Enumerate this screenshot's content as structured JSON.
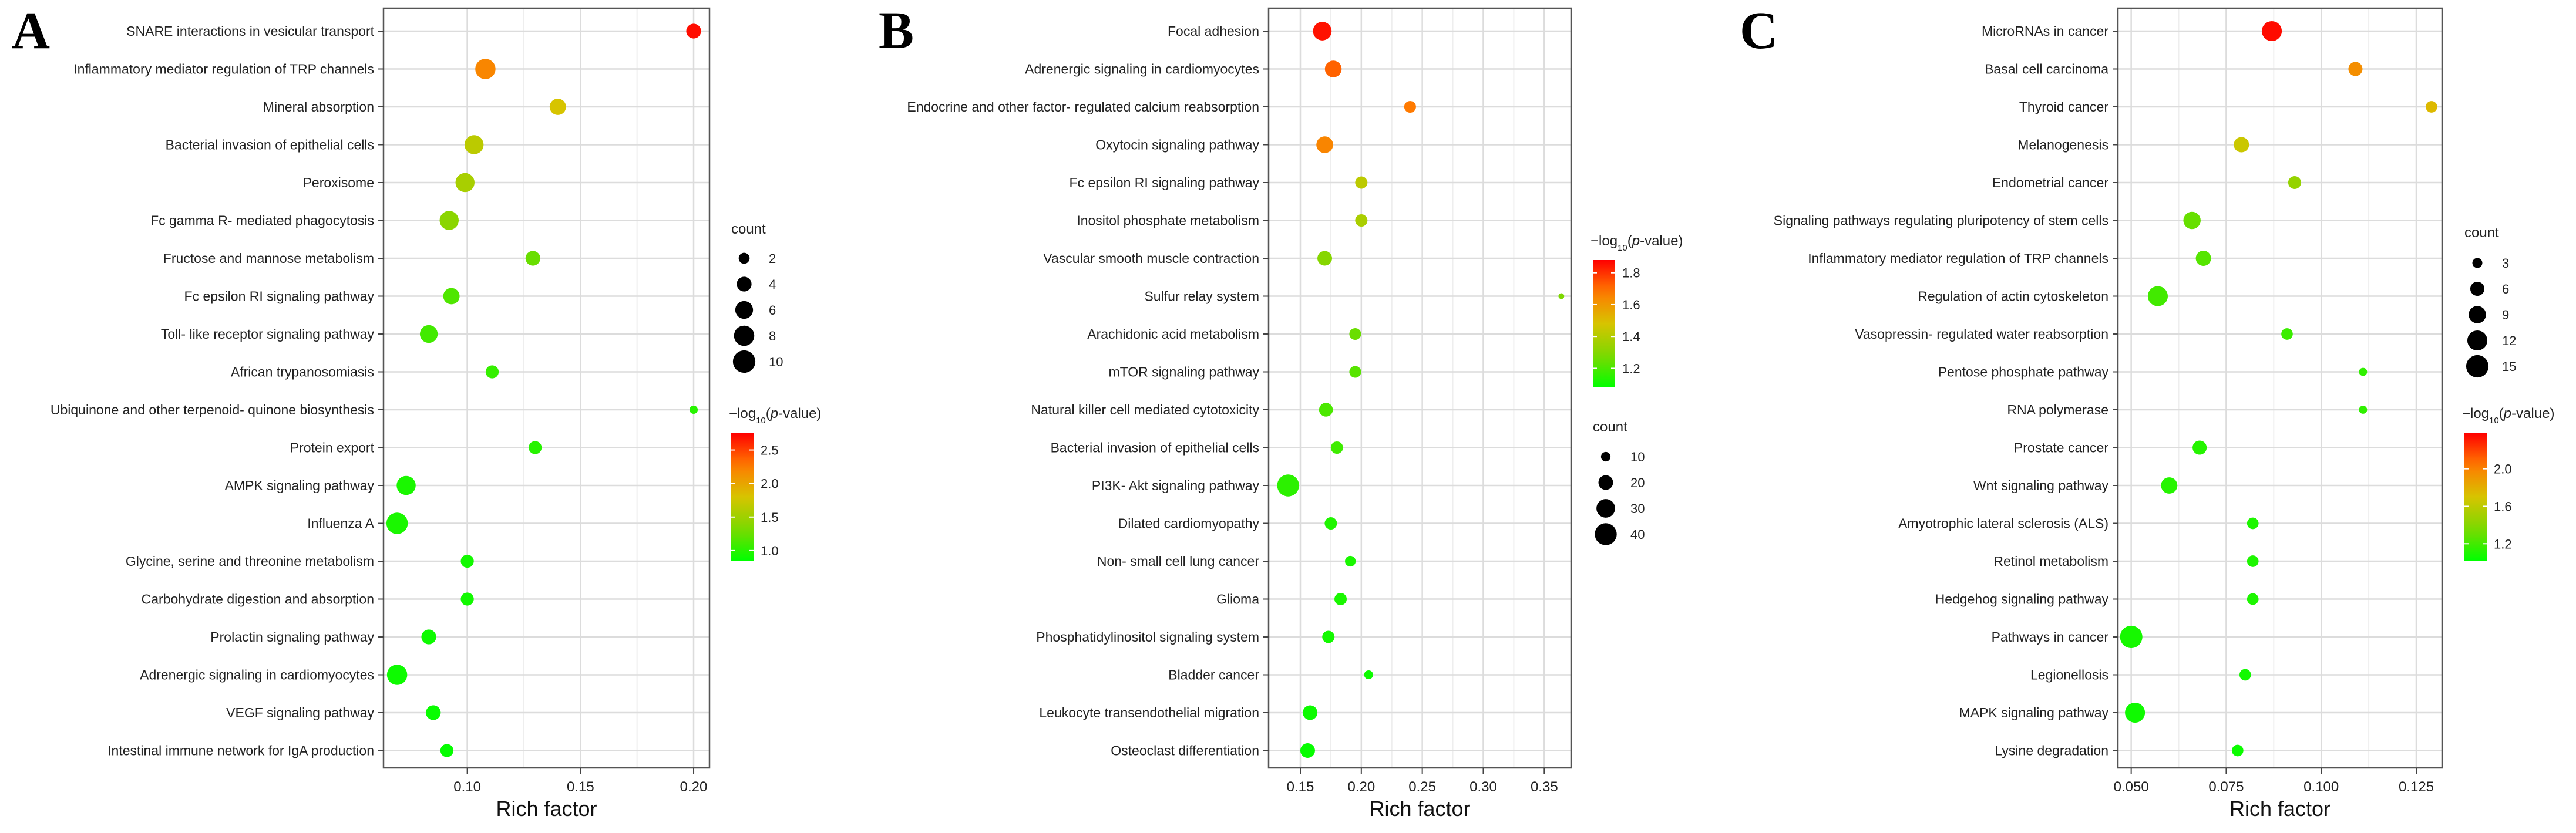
{
  "panel_labels": [
    "A",
    "B",
    "C"
  ],
  "legend_titles": {
    "count": "count",
    "pval_prefix": "−log",
    "pval_sub": "10",
    "pval_open": "(",
    "pval_p": "p",
    "pval_close": "-value)"
  },
  "colors": {
    "low": "#00ff00",
    "mid1": "#7dd800",
    "mid2": "#d7c400",
    "mid3": "#ff7a00",
    "high": "#ff0000",
    "grid": "#dcdcdc",
    "panel_border": "#555555"
  },
  "chart_data": [
    {
      "type": "scatter",
      "panel": "A",
      "xlabel": "Rich factor",
      "xlim": [
        0.063,
        0.207
      ],
      "xticks": [
        0.1,
        0.15,
        0.2
      ],
      "xtick_labels": [
        "0.10",
        "0.15",
        "0.20"
      ],
      "count_breaks": [
        2,
        4,
        6,
        8,
        10
      ],
      "count_range": [
        1,
        11
      ],
      "pval_range": [
        0.85,
        2.75
      ],
      "pval_ticks": [
        1.0,
        1.5,
        2.0,
        2.5
      ],
      "pval_tick_labels": [
        "1.0",
        "1.5",
        "2.0",
        "2.5"
      ],
      "pathways": [
        {
          "term": "SNARE interactions in vesicular transport",
          "rich": 0.2,
          "count": 4,
          "logp": 2.7
        },
        {
          "term": "Inflammatory mediator regulation of TRP channels",
          "rich": 0.108,
          "count": 8,
          "logp": 2.2
        },
        {
          "term": "Mineral absorption",
          "rich": 0.14,
          "count": 5,
          "logp": 1.8
        },
        {
          "term": "Bacterial invasion of epithelial cells",
          "rich": 0.103,
          "count": 7,
          "logp": 1.65
        },
        {
          "term": "Peroxisome",
          "rich": 0.099,
          "count": 7,
          "logp": 1.55
        },
        {
          "term": "Fc gamma R- mediated phagocytosis",
          "rich": 0.092,
          "count": 7,
          "logp": 1.4
        },
        {
          "term": "Fructose and mannose metabolism",
          "rich": 0.129,
          "count": 4,
          "logp": 1.25
        },
        {
          "term": "Fc epsilon RI signaling pathway",
          "rich": 0.093,
          "count": 5,
          "logp": 1.15
        },
        {
          "term": "Toll- like receptor signaling pathway",
          "rich": 0.083,
          "count": 6,
          "logp": 1.1
        },
        {
          "term": "African trypanosomiasis",
          "rich": 0.111,
          "count": 3,
          "logp": 1.05
        },
        {
          "term": "Ubiquinone and other terpenoid- quinone biosynthesis",
          "rich": 0.2,
          "count": 1,
          "logp": 1.0
        },
        {
          "term": "Protein export",
          "rich": 0.13,
          "count": 3,
          "logp": 1.0
        },
        {
          "term": "AMPK signaling pathway",
          "rich": 0.073,
          "count": 7,
          "logp": 0.95
        },
        {
          "term": "Influenza A",
          "rich": 0.069,
          "count": 9,
          "logp": 0.95
        },
        {
          "term": "Glycine, serine and threonine metabolism",
          "rich": 0.1,
          "count": 3,
          "logp": 0.92
        },
        {
          "term": "Carbohydrate digestion and absorption",
          "rich": 0.1,
          "count": 3,
          "logp": 0.92
        },
        {
          "term": "Prolactin signaling pathway",
          "rich": 0.083,
          "count": 4,
          "logp": 0.9
        },
        {
          "term": "Adrenergic signaling in cardiomyocytes",
          "rich": 0.069,
          "count": 8,
          "logp": 0.9
        },
        {
          "term": "VEGF signaling pathway",
          "rich": 0.085,
          "count": 4,
          "logp": 0.88
        },
        {
          "term": "Intestinal immune network for IgA production",
          "rich": 0.091,
          "count": 3,
          "logp": 0.87
        }
      ]
    },
    {
      "type": "scatter",
      "panel": "B",
      "xlabel": "Rich factor",
      "xlim": [
        0.124,
        0.372
      ],
      "xticks": [
        0.15,
        0.2,
        0.25,
        0.3,
        0.35
      ],
      "xtick_labels": [
        "0.15",
        "0.20",
        "0.25",
        "0.30",
        "0.35"
      ],
      "count_breaks": [
        10,
        20,
        30,
        40
      ],
      "count_range": [
        5,
        45
      ],
      "pval_range": [
        1.08,
        1.88
      ],
      "pval_ticks": [
        1.2,
        1.4,
        1.6,
        1.8
      ],
      "pval_tick_labels": [
        "1.2",
        "1.4",
        "1.6",
        "1.8"
      ],
      "pathways": [
        {
          "term": "Focal adhesion",
          "rich": 0.168,
          "count": 30,
          "logp": 1.85
        },
        {
          "term": "Adrenergic signaling in cardiomyocytes",
          "rich": 0.177,
          "count": 25,
          "logp": 1.72
        },
        {
          "term": "Endocrine and other factor- regulated calcium reabsorption",
          "rich": 0.24,
          "count": 14,
          "logp": 1.68
        },
        {
          "term": "Oxytocin signaling pathway",
          "rich": 0.17,
          "count": 25,
          "logp": 1.65
        },
        {
          "term": "Fc epsilon RI signaling pathway",
          "rich": 0.2,
          "count": 15,
          "logp": 1.42
        },
        {
          "term": "Inositol phosphate metabolism",
          "rich": 0.2,
          "count": 15,
          "logp": 1.38
        },
        {
          "term": "Vascular smooth muscle contraction",
          "rich": 0.17,
          "count": 20,
          "logp": 1.3
        },
        {
          "term": "Sulfur relay system",
          "rich": 0.364,
          "count": 4,
          "logp": 1.28
        },
        {
          "term": "Arachidonic acid metabolism",
          "rich": 0.195,
          "count": 14,
          "logp": 1.25
        },
        {
          "term": "mTOR signaling pathway",
          "rich": 0.195,
          "count": 14,
          "logp": 1.22
        },
        {
          "term": "Natural killer cell mediated cytotoxicity",
          "rich": 0.171,
          "count": 18,
          "logp": 1.2
        },
        {
          "term": "Bacterial invasion of epithelial cells",
          "rich": 0.18,
          "count": 15,
          "logp": 1.18
        },
        {
          "term": "PI3K- Akt signaling pathway",
          "rich": 0.14,
          "count": 40,
          "logp": 1.15
        },
        {
          "term": "Dilated cardiomyopathy",
          "rich": 0.175,
          "count": 15,
          "logp": 1.13
        },
        {
          "term": "Non- small cell lung cancer",
          "rich": 0.191,
          "count": 12,
          "logp": 1.12
        },
        {
          "term": "Glioma",
          "rich": 0.183,
          "count": 15,
          "logp": 1.12
        },
        {
          "term": "Phosphatidylinositol signaling system",
          "rich": 0.173,
          "count": 15,
          "logp": 1.11
        },
        {
          "term": "Bladder cancer",
          "rich": 0.206,
          "count": 9,
          "logp": 1.1
        },
        {
          "term": "Leukocyte transendothelial migration",
          "rich": 0.158,
          "count": 20,
          "logp": 1.1
        },
        {
          "term": "Osteoclast differentiation",
          "rich": 0.156,
          "count": 20,
          "logp": 1.09
        }
      ]
    },
    {
      "type": "scatter",
      "panel": "C",
      "xlabel": "Rich factor",
      "xlim": [
        0.0465,
        0.1318
      ],
      "xticks": [
        0.05,
        0.075,
        0.1,
        0.125
      ],
      "xtick_labels": [
        "0.050",
        "0.075",
        "0.100",
        "0.125"
      ],
      "count_breaks": [
        3,
        6,
        9,
        12,
        15
      ],
      "count_range": [
        1.5,
        16.5
      ],
      "pval_range": [
        1.02,
        2.38
      ],
      "pval_ticks": [
        1.2,
        1.6,
        2.0
      ],
      "pval_tick_labels": [
        "1.2",
        "1.6",
        "2.0"
      ],
      "pathways": [
        {
          "term": "MicroRNAs in cancer",
          "rich": 0.087,
          "count": 12,
          "logp": 2.35
        },
        {
          "term": "Basal cell carcinoma",
          "rich": 0.109,
          "count": 6,
          "logp": 1.95
        },
        {
          "term": "Thyroid cancer",
          "rich": 0.129,
          "count": 4,
          "logp": 1.75
        },
        {
          "term": "Melanogenesis",
          "rich": 0.079,
          "count": 7,
          "logp": 1.65
        },
        {
          "term": "Endometrial cancer",
          "rich": 0.093,
          "count": 5,
          "logp": 1.45
        },
        {
          "term": "Signaling pathways regulating pluripotency of stem cells",
          "rich": 0.066,
          "count": 9,
          "logp": 1.3
        },
        {
          "term": "Inflammatory mediator regulation of TRP channels",
          "rich": 0.069,
          "count": 7,
          "logp": 1.25
        },
        {
          "term": "Regulation of actin cytoskeleton",
          "rich": 0.057,
          "count": 12,
          "logp": 1.2
        },
        {
          "term": "Vasopressin- regulated water reabsorption",
          "rich": 0.091,
          "count": 4,
          "logp": 1.18
        },
        {
          "term": "Pentose phosphate pathway",
          "rich": 0.111,
          "count": 2,
          "logp": 1.15
        },
        {
          "term": "RNA polymerase",
          "rich": 0.111,
          "count": 2,
          "logp": 1.15
        },
        {
          "term": "Prostate cancer",
          "rich": 0.068,
          "count": 6,
          "logp": 1.12
        },
        {
          "term": "Wnt signaling pathway",
          "rich": 0.06,
          "count": 8,
          "logp": 1.12
        },
        {
          "term": "Amyotrophic lateral sclerosis (ALS)",
          "rich": 0.082,
          "count": 4,
          "logp": 1.1
        },
        {
          "term": "Retinol metabolism",
          "rich": 0.082,
          "count": 4,
          "logp": 1.1
        },
        {
          "term": "Hedgehog signaling pathway",
          "rich": 0.082,
          "count": 4,
          "logp": 1.1
        },
        {
          "term": "Pathways in cancer",
          "rich": 0.05,
          "count": 15,
          "logp": 1.08
        },
        {
          "term": "Legionellosis",
          "rich": 0.08,
          "count": 4,
          "logp": 1.07
        },
        {
          "term": "MAPK signaling pathway",
          "rich": 0.051,
          "count": 12,
          "logp": 1.06
        },
        {
          "term": "Lysine degradation",
          "rich": 0.078,
          "count": 4,
          "logp": 1.05
        }
      ]
    }
  ]
}
